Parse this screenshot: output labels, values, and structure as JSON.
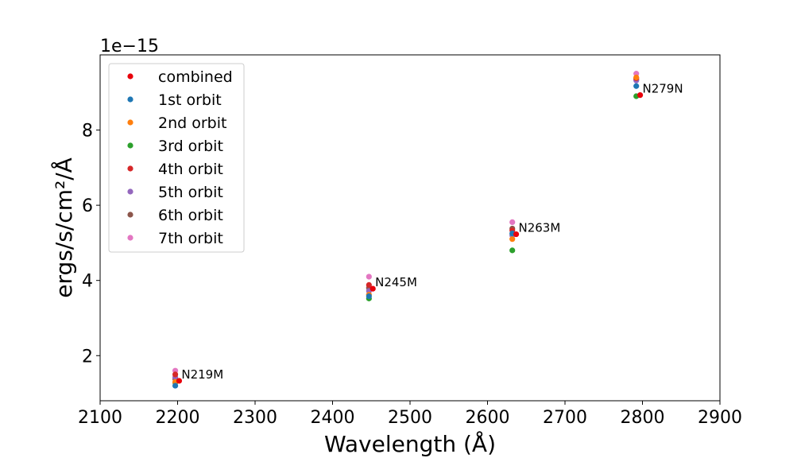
{
  "chart_data": {
    "type": "scatter",
    "xlabel": "Wavelength (Å)",
    "ylabel": "ergs/s/cm²/Å",
    "offset_text": "1e−15",
    "xlim": [
      2100,
      2900
    ],
    "ylim": [
      0.8,
      10.0
    ],
    "xticks": [
      "2100",
      "2200",
      "2300",
      "2400",
      "2500",
      "2600",
      "2700",
      "2800",
      "2900"
    ],
    "yticks": [
      "2",
      "4",
      "6",
      "8"
    ],
    "grid": false,
    "legend_position": "top-left",
    "series": [
      {
        "name": "combined",
        "color": "#e8000b",
        "points": [
          [
            2202,
            1.33
          ],
          [
            2452,
            3.78
          ],
          [
            2637,
            5.23
          ],
          [
            2797,
            8.93
          ]
        ]
      },
      {
        "name": "1st orbit",
        "color": "#1f77b4",
        "points": [
          [
            2197,
            1.2
          ],
          [
            2447,
            3.58
          ],
          [
            2632,
            5.25
          ],
          [
            2792,
            9.17
          ]
        ]
      },
      {
        "name": "2nd orbit",
        "color": "#ff7f0e",
        "points": [
          [
            2197,
            1.3
          ],
          [
            2447,
            3.62
          ],
          [
            2632,
            5.1
          ],
          [
            2792,
            9.4
          ]
        ]
      },
      {
        "name": "3rd orbit",
        "color": "#2ca02c",
        "points": [
          [
            2197,
            1.28
          ],
          [
            2447,
            3.52
          ],
          [
            2632,
            4.8
          ],
          [
            2792,
            8.9
          ]
        ]
      },
      {
        "name": "4th orbit",
        "color": "#d62728",
        "points": [
          [
            2197,
            1.5
          ],
          [
            2447,
            3.88
          ],
          [
            2632,
            5.33
          ],
          [
            2792,
            9.38
          ]
        ]
      },
      {
        "name": "5th orbit",
        "color": "#9467bd",
        "points": [
          [
            2197,
            1.42
          ],
          [
            2447,
            3.72
          ],
          [
            2632,
            5.2
          ],
          [
            2792,
            9.32
          ]
        ]
      },
      {
        "name": "6th orbit",
        "color": "#8c564b",
        "points": [
          [
            2197,
            1.38
          ],
          [
            2447,
            3.8
          ],
          [
            2632,
            5.38
          ],
          [
            2792,
            9.34
          ]
        ]
      },
      {
        "name": "7th orbit",
        "color": "#e377c2",
        "points": [
          [
            2197,
            1.6
          ],
          [
            2447,
            4.1
          ],
          [
            2632,
            5.55
          ],
          [
            2792,
            9.5
          ]
        ]
      }
    ],
    "annotations": [
      {
        "text": "N219M",
        "x": 2205,
        "y": 1.5
      },
      {
        "text": "N245M",
        "x": 2455,
        "y": 3.95
      },
      {
        "text": "N263M",
        "x": 2640,
        "y": 5.4
      },
      {
        "text": "N279N",
        "x": 2800,
        "y": 9.1
      }
    ]
  }
}
